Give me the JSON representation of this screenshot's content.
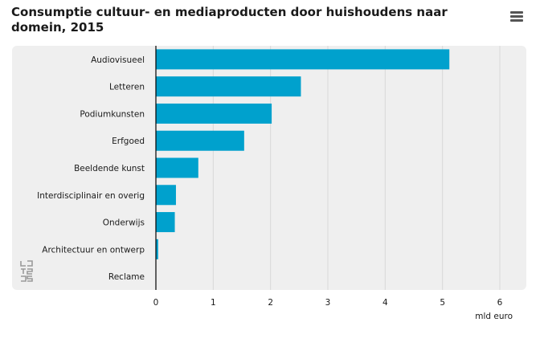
{
  "title": "Consumptie cultuur- en mediaproducten door huishoudens naar domein, 2015",
  "menu_icon": "hamburger-menu-icon",
  "logo_icon": "cbs-logo-icon",
  "colors": {
    "bar": "#00a1cd",
    "plot_band": "#efefef",
    "grid": "#d8d8d8",
    "axis": "#000000"
  },
  "chart_data": {
    "type": "bar",
    "orientation": "horizontal",
    "categories": [
      "Audiovisueel",
      "Letteren",
      "Podiumkunsten",
      "Erfgoed",
      "Beeldende kunst",
      "Interdisciplinair en overig",
      "Onderwijs",
      "Architectuur en ontwerp",
      "Reclame"
    ],
    "values": [
      5.12,
      2.53,
      2.02,
      1.54,
      0.74,
      0.35,
      0.33,
      0.04,
      0.0
    ],
    "xlim": [
      0,
      6
    ],
    "xticks": [
      "0",
      "1",
      "2",
      "3",
      "4",
      "5",
      "6"
    ],
    "xlabel": "mld euro",
    "grid": "vertical",
    "legend": "none"
  }
}
